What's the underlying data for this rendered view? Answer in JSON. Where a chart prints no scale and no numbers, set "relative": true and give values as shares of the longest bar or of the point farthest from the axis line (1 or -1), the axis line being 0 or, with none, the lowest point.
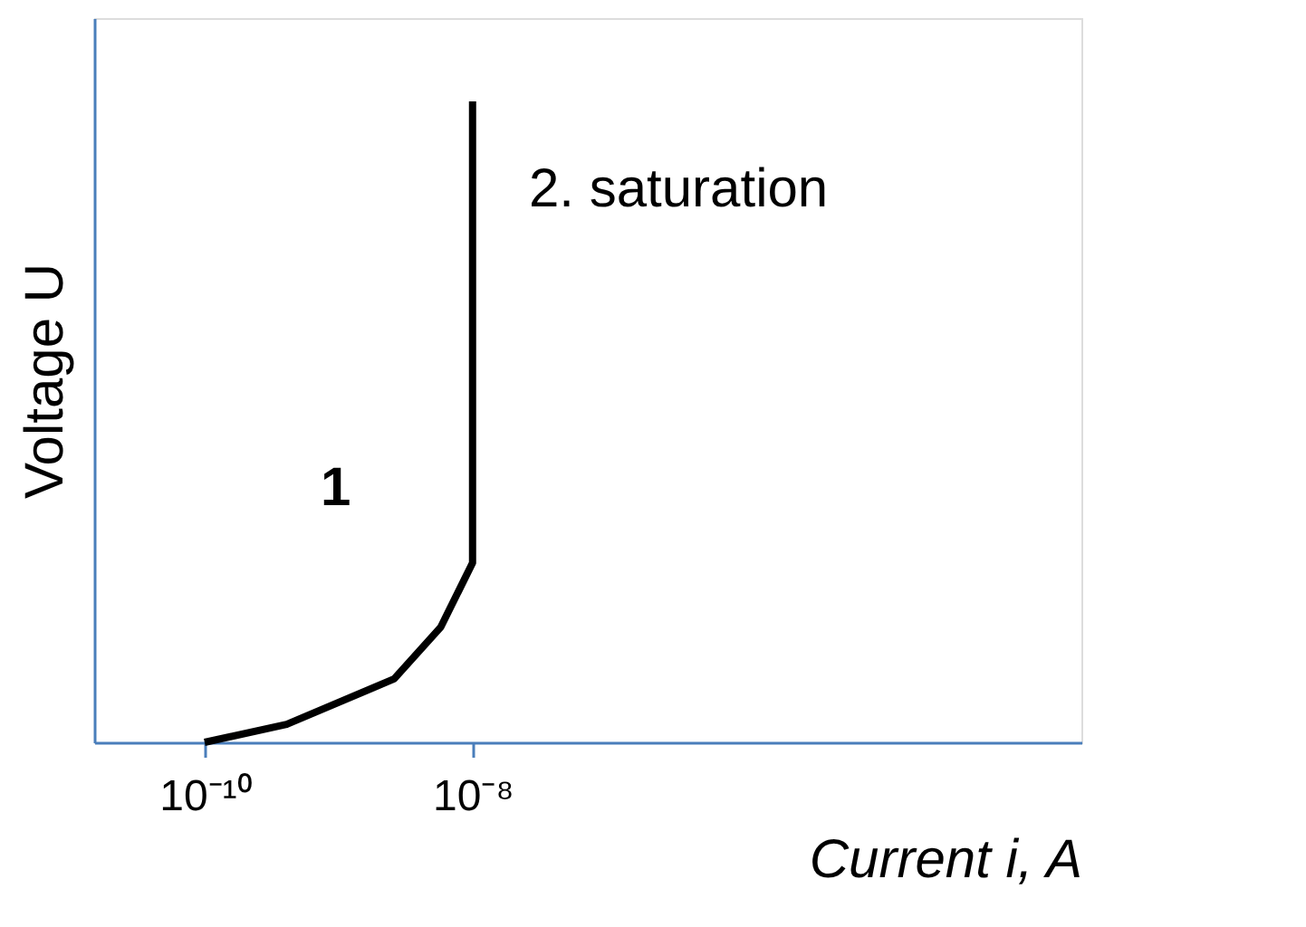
{
  "chart_data": {
    "type": "line",
    "relative": true,
    "log": "x",
    "xlabel": "Current i, A",
    "ylabel": "Voltage U",
    "xlim": [
      1.5e-11,
      0.00035
    ],
    "xticks": [
      {
        "value": 1e-10,
        "label": "10⁻¹⁰"
      },
      {
        "value": 1e-08,
        "label": "10⁻⁸"
      }
    ],
    "tick_labels": "x",
    "grid": false,
    "marker": "none",
    "line_style": "solid",
    "series": [
      {
        "color": "#000000",
        "x": [
          1e-10,
          4.1e-10,
          2.6e-09,
          5.8e-09,
          1e-08,
          1e-08
        ],
        "values": [
          0,
          0.028,
          0.099,
          0.18,
          0.28,
          1
        ]
      }
    ],
    "annotations": [
      "1",
      "2. saturation"
    ]
  }
}
